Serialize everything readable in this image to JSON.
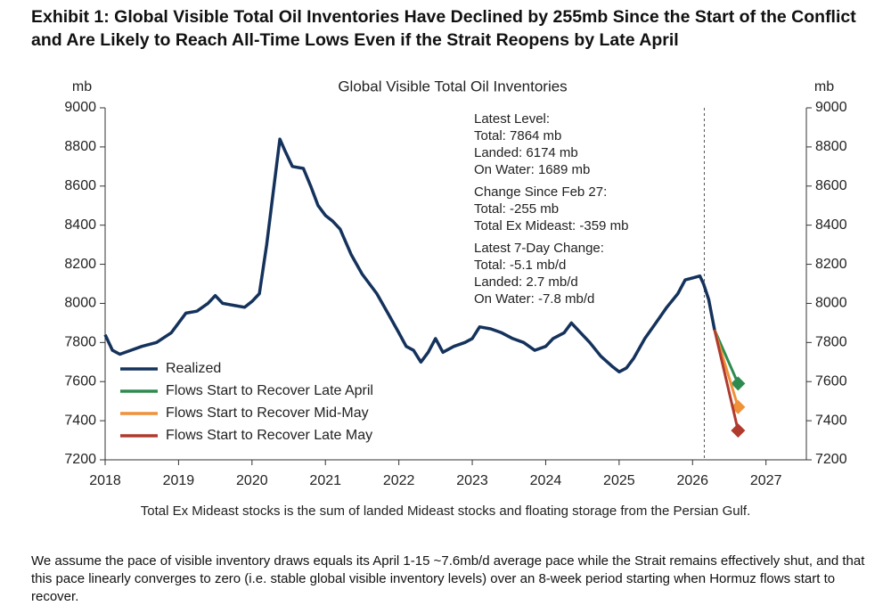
{
  "header": {
    "title": "Exhibit 1: Global Visible Total Oil Inventories Have Declined by 255mb Since the Start of the Conflict and Are Likely to Reach All-Time Lows Even if the Strait Reopens by Late April"
  },
  "chart_data": {
    "type": "line",
    "title": "Global Visible Total Oil Inventories",
    "y_label": "mb",
    "y2_label": "mb",
    "xlim": [
      2018,
      2027.55
    ],
    "xticks": [
      2018,
      2019,
      2020,
      2021,
      2022,
      2023,
      2024,
      2025,
      2026,
      2027
    ],
    "ylim": [
      7200,
      9000
    ],
    "yticks": [
      7200,
      7400,
      7600,
      7800,
      8000,
      8200,
      8400,
      8600,
      8800,
      9000
    ],
    "y2lim": [
      7200,
      9000
    ],
    "y2ticks": [
      7200,
      7400,
      7600,
      7800,
      8000,
      8200,
      8400,
      8600,
      8800,
      9000
    ],
    "legend": "left",
    "event_line": 2026.16,
    "annotation": [
      "Latest Level:",
      "Total: 7864 mb",
      "Landed: 6174 mb",
      "On Water: 1689 mb",
      "Change Since Feb 27:",
      "Total: -255 mb",
      "Total Ex Mideast: -359 mb",
      "Latest 7-Day Change:",
      "Total: -5.1 mb/d",
      "Landed: 2.7 mb/d",
      "On Water: -7.8 mb/d"
    ],
    "note": "Total Ex Mideast stocks is the sum of landed Mideast stocks and floating storage from the Persian Gulf.",
    "series": [
      {
        "name": "Realized",
        "color": "#14325c",
        "x": [
          2018.0,
          2018.1,
          2018.2,
          2018.35,
          2018.5,
          2018.7,
          2018.9,
          2019.0,
          2019.1,
          2019.25,
          2019.4,
          2019.5,
          2019.6,
          2019.75,
          2019.9,
          2020.0,
          2020.1,
          2020.2,
          2020.3,
          2020.38,
          2020.45,
          2020.55,
          2020.7,
          2020.8,
          2020.9,
          2021.0,
          2021.1,
          2021.2,
          2021.35,
          2021.5,
          2021.7,
          2021.85,
          2022.0,
          2022.1,
          2022.2,
          2022.3,
          2022.4,
          2022.5,
          2022.6,
          2022.75,
          2022.9,
          2023.0,
          2023.1,
          2023.25,
          2023.4,
          2023.55,
          2023.7,
          2023.85,
          2024.0,
          2024.1,
          2024.25,
          2024.35,
          2024.45,
          2024.6,
          2024.75,
          2024.9,
          2025.0,
          2025.1,
          2025.2,
          2025.35,
          2025.5,
          2025.65,
          2025.8,
          2025.9,
          2026.0,
          2026.1,
          2026.15,
          2026.22,
          2026.3
        ],
        "values": [
          7840,
          7760,
          7740,
          7760,
          7780,
          7800,
          7850,
          7900,
          7950,
          7960,
          8000,
          8040,
          8000,
          7990,
          7980,
          8010,
          8050,
          8300,
          8600,
          8840,
          8780,
          8700,
          8690,
          8600,
          8500,
          8450,
          8420,
          8380,
          8250,
          8150,
          8050,
          7950,
          7850,
          7780,
          7760,
          7700,
          7750,
          7820,
          7750,
          7780,
          7800,
          7820,
          7880,
          7870,
          7850,
          7820,
          7800,
          7760,
          7780,
          7820,
          7850,
          7900,
          7860,
          7800,
          7730,
          7680,
          7650,
          7670,
          7720,
          7820,
          7900,
          7980,
          8050,
          8120,
          8130,
          8140,
          8100,
          8020,
          7864
        ]
      },
      {
        "name": "Flows Start to Recover Late April",
        "color": "#2e8b4f",
        "x": [
          2026.3,
          2026.62
        ],
        "values": [
          7864,
          7590
        ]
      },
      {
        "name": "Flows Start to Recover Mid-May",
        "color": "#f0923a",
        "x": [
          2026.3,
          2026.62
        ],
        "values": [
          7864,
          7470
        ]
      },
      {
        "name": "Flows Start to Recover Late May",
        "color": "#b03a2e",
        "x": [
          2026.3,
          2026.62
        ],
        "values": [
          7864,
          7350
        ]
      }
    ]
  },
  "body": {
    "paragraph": "We assume the pace of visible inventory draws equals its April 1-15 ~7.6mb/d average pace while the Strait remains effectively shut, and that this pace linearly converges to zero (i.e. stable global visible inventory levels) over an 8-week period starting when Hormuz flows start to recover."
  }
}
